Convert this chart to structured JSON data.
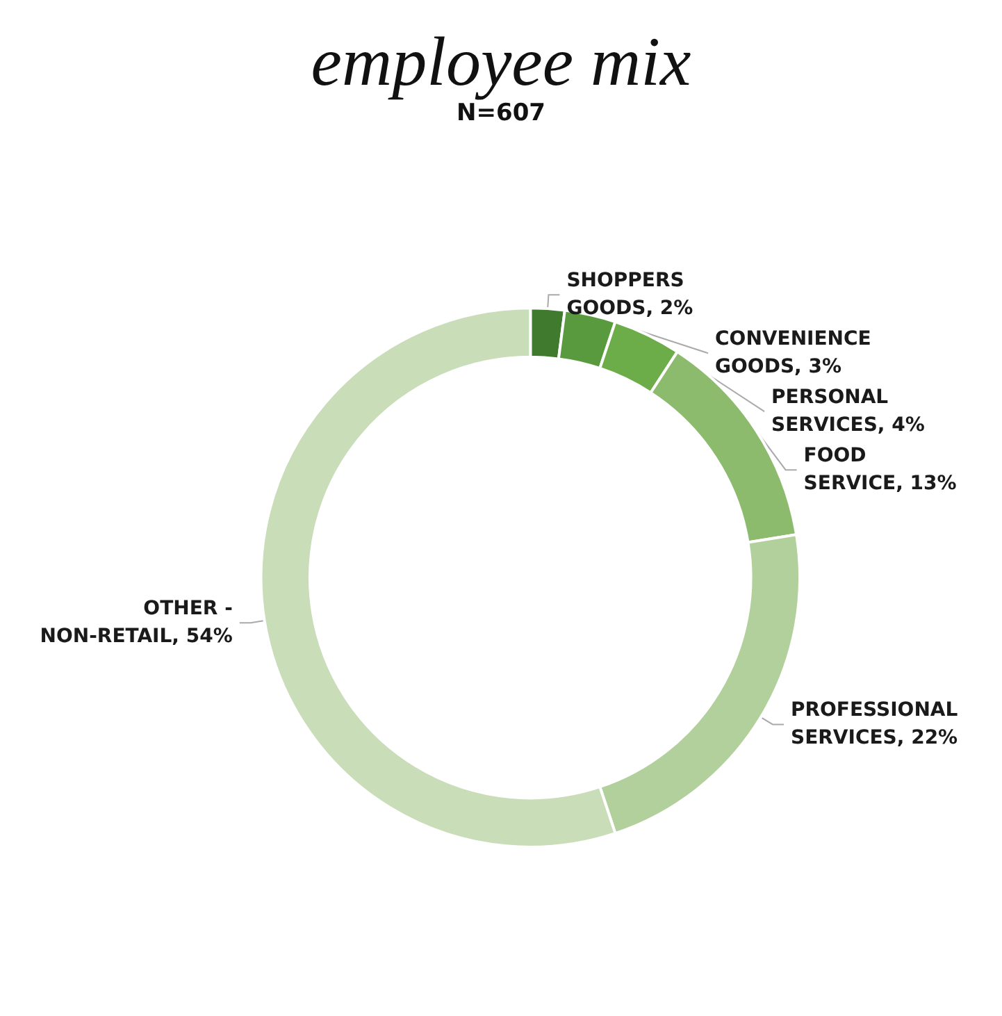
{
  "chart_data": {
    "type": "donut",
    "title": "employee mix",
    "subtitle": "N=607",
    "categories": [
      "SHOPPERS GOODS",
      "CONVENIENCE GOODS",
      "PERSONAL SERVICES",
      "FOOD SERVICE",
      "PROFESSIONAL SERVICES",
      "OTHER - NON-RETAIL"
    ],
    "values": [
      2,
      3,
      4,
      13,
      22,
      54
    ],
    "value_labels": [
      "2%",
      "3%",
      "4%",
      "13%",
      "22%",
      "54%"
    ],
    "colors": [
      "#3f7a2f",
      "#5a9a3e",
      "#6cad4a",
      "#8cbb6e",
      "#b2d09c",
      "#c9ddb9"
    ],
    "legend": false
  }
}
